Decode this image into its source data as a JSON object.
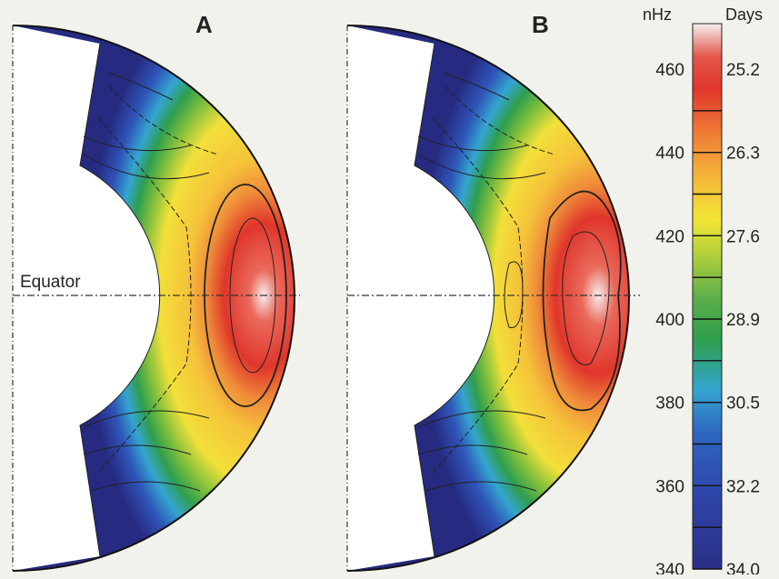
{
  "panels": [
    {
      "label": "A"
    },
    {
      "label": "B"
    }
  ],
  "equator_label": "Equator",
  "colorbar": {
    "left_unit": "nHz",
    "right_unit": "Days",
    "ticks": [
      {
        "nhz": "460",
        "days": "25.2"
      },
      {
        "nhz": "440",
        "days": "26.3"
      },
      {
        "nhz": "420",
        "days": "27.6"
      },
      {
        "nhz": "400",
        "days": "28.9"
      },
      {
        "nhz": "380",
        "days": "30.5"
      },
      {
        "nhz": "360",
        "days": "32.2"
      },
      {
        "nhz": "340",
        "days": "34.0"
      }
    ],
    "colors": [
      "#2a2f86",
      "#2e55b8",
      "#34a5cf",
      "#2f9e4e",
      "#7bbd3d",
      "#f2e536",
      "#f2a23a",
      "#e0362b",
      "#f6f0f0"
    ]
  }
}
